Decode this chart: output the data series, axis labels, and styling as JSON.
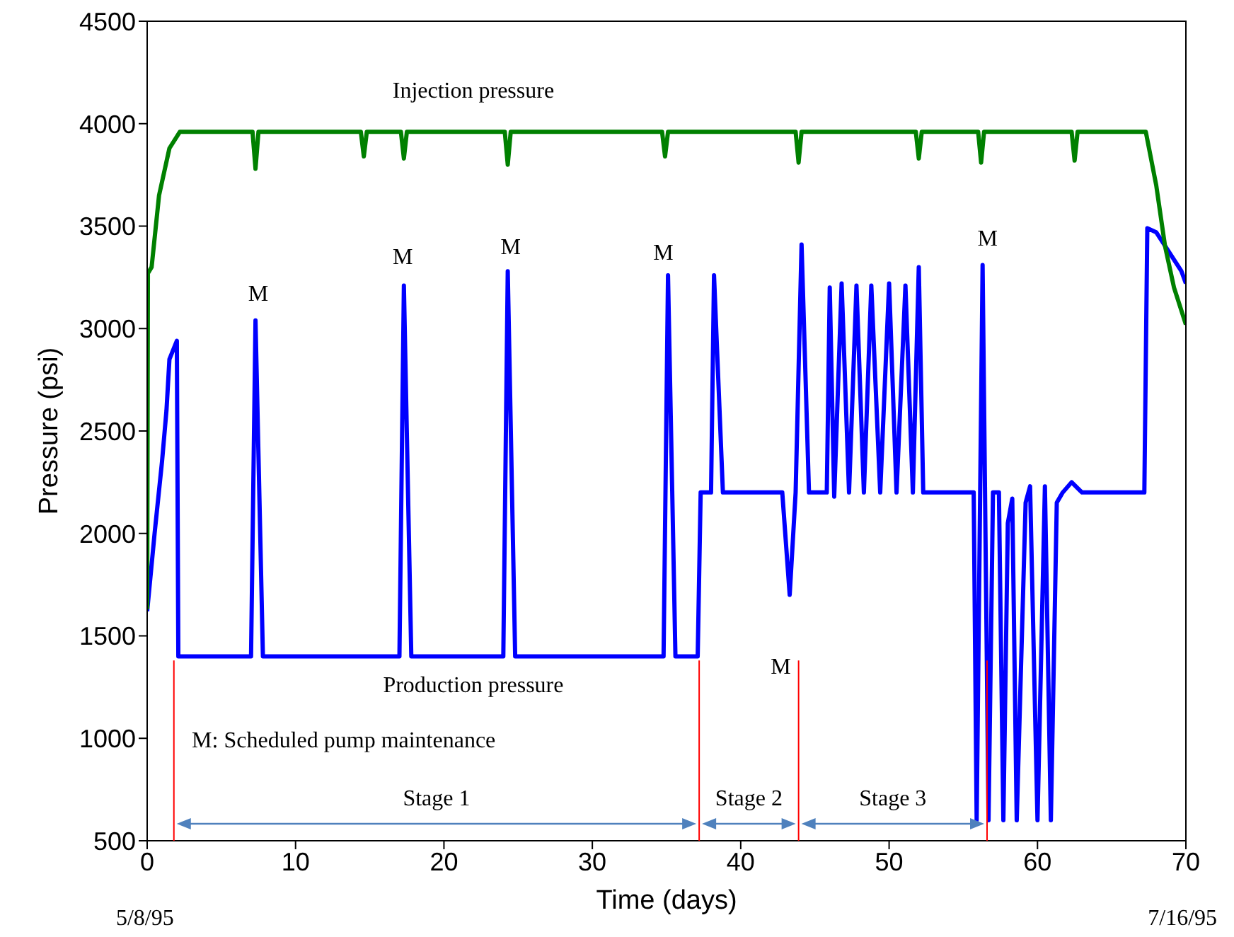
{
  "chart_data": {
    "type": "line",
    "xlabel": "Time (days)",
    "ylabel": "Pressure (psi)",
    "xlim": [
      0,
      70
    ],
    "xticks": [
      0,
      10,
      20,
      30,
      40,
      50,
      60,
      70
    ],
    "ylim": [
      500,
      4500
    ],
    "yticks": [
      500,
      1000,
      1500,
      2000,
      2500,
      3000,
      3500,
      4000,
      4500
    ],
    "grid": false,
    "marker": "none",
    "line_style": "solid",
    "series": [
      {
        "color": "#0000ff",
        "x": [
          0,
          0.5,
          1,
          1.3,
          1.5,
          2,
          2.1,
          7,
          7.3,
          7.8,
          17,
          17.3,
          17.8,
          24,
          24.3,
          24.8,
          34.8,
          35.1,
          35.6,
          37.1,
          37.3,
          38,
          38.2,
          38.8,
          42.8,
          43.3,
          43.7,
          44.1,
          44.6,
          45.8,
          46,
          46.3,
          46.8,
          47.3,
          47.8,
          48.3,
          48.8,
          49.4,
          50,
          50.5,
          51.1,
          51.6,
          52,
          52.3,
          55.7,
          55.9,
          56.3,
          56.7,
          57,
          57.4,
          57.7,
          58,
          58.3,
          58.6,
          59.2,
          59.5,
          60,
          60.5,
          60.9,
          61.3,
          61.7,
          62.3,
          63,
          67.2,
          67.4,
          68,
          69.7,
          70
        ],
        "values": [
          1620,
          2000,
          2350,
          2600,
          2850,
          2940,
          1400,
          1400,
          3040,
          1400,
          1400,
          3210,
          1400,
          1400,
          3280,
          1400,
          1400,
          3260,
          1400,
          1400,
          2200,
          2200,
          3260,
          2200,
          2200,
          1700,
          2200,
          3410,
          2200,
          2200,
          3200,
          2180,
          3220,
          2200,
          3210,
          2200,
          3210,
          2200,
          3220,
          2200,
          3210,
          2200,
          3300,
          2200,
          2200,
          600,
          3310,
          600,
          2200,
          2200,
          600,
          2050,
          2170,
          600,
          2150,
          2230,
          600,
          2230,
          600,
          2150,
          2200,
          2250,
          2200,
          2200,
          3490,
          3470,
          3280,
          3220
        ]
      },
      {
        "color": "#008000",
        "x": [
          0,
          0.05,
          0.3,
          0.8,
          1.5,
          2.2,
          7.1,
          7.3,
          7.5,
          14.4,
          14.6,
          14.8,
          17.1,
          17.3,
          17.5,
          24.1,
          24.3,
          24.5,
          34.7,
          34.9,
          35.1,
          43.7,
          43.9,
          44.1,
          51.8,
          52,
          52.2,
          56,
          56.2,
          56.4,
          62.3,
          62.5,
          62.7,
          67.3,
          68,
          68.6,
          69.2,
          70
        ],
        "values": [
          1630,
          3270,
          3300,
          3650,
          3880,
          3960,
          3960,
          3780,
          3960,
          3960,
          3840,
          3960,
          3960,
          3830,
          3960,
          3960,
          3800,
          3960,
          3960,
          3840,
          3960,
          3960,
          3810,
          3960,
          3960,
          3830,
          3960,
          3960,
          3810,
          3960,
          3960,
          3820,
          3960,
          3960,
          3700,
          3400,
          3200,
          3020
        ]
      }
    ],
    "ref_lines": [
      {
        "axis": "x",
        "value": 1.8,
        "color": "#ff0000"
      },
      {
        "axis": "x",
        "value": 37.2,
        "color": "#ff0000"
      },
      {
        "axis": "x",
        "value": 43.9,
        "color": "#ff0000"
      },
      {
        "axis": "x",
        "value": 56.6,
        "color": "#ff0000"
      }
    ],
    "annotations": [
      "Injection pressure",
      "Production pressure",
      "M",
      "M",
      "M",
      "M",
      "M",
      "M",
      "M: Scheduled pump maintenance",
      "5/8/95",
      "7/16/95",
      "Stage 1",
      "Stage 2",
      "Stage 3"
    ]
  }
}
